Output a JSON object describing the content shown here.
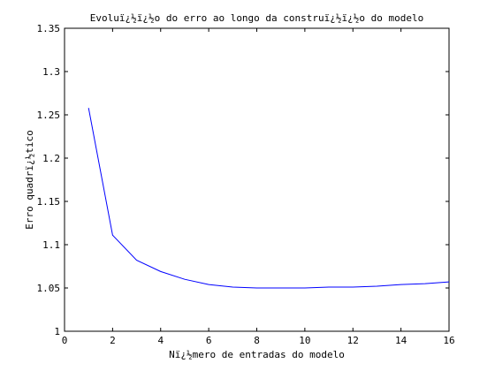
{
  "chart_data": {
    "type": "line",
    "title": "Evoluï¿½ï¿½o do erro ao longo da construï¿½ï¿½o do modelo",
    "xlabel": "Nï¿½mero de entradas do modelo",
    "ylabel": "Erro quadrï¿½tico",
    "xlim": [
      0,
      16
    ],
    "ylim": [
      1,
      1.35
    ],
    "xticks": [
      0,
      2,
      4,
      6,
      8,
      10,
      12,
      14,
      16
    ],
    "xtick_labels": [
      "0",
      "2",
      "4",
      "6",
      "8",
      "10",
      "12",
      "14",
      "16"
    ],
    "yticks": [
      1,
      1.05,
      1.1,
      1.15,
      1.2,
      1.25,
      1.3,
      1.35
    ],
    "ytick_labels": [
      "1",
      "1.05",
      "1.1",
      "1.15",
      "1.2",
      "1.25",
      "1.3",
      "1.35"
    ],
    "grid": false,
    "series": [
      {
        "color": "#0000ff",
        "x": [
          1,
          2,
          3,
          4,
          5,
          6,
          7,
          8,
          9,
          10,
          11,
          12,
          13,
          14,
          15,
          16
        ],
        "y": [
          1.258,
          1.111,
          1.082,
          1.069,
          1.06,
          1.054,
          1.051,
          1.05,
          1.05,
          1.05,
          1.051,
          1.051,
          1.052,
          1.054,
          1.055,
          1.057
        ]
      }
    ]
  }
}
